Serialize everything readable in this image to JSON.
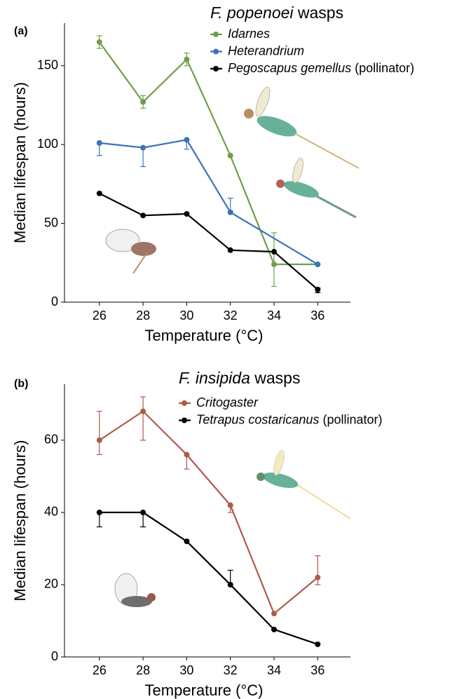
{
  "chart_data": [
    {
      "type": "line",
      "panel_label": "(a)",
      "legend_title": {
        "species": "F. popenoei",
        "rest": "wasps"
      },
      "x_label": "Temperature (°C)",
      "y_label": "Median lifespan (hours)",
      "x": [
        26,
        28,
        30,
        32,
        34,
        36
      ],
      "xlim": [
        24.4,
        37.5
      ],
      "xticks": [
        26,
        28,
        30,
        32,
        34,
        36
      ],
      "ylim": [
        0,
        177
      ],
      "yticks": [
        0,
        50,
        100,
        150
      ],
      "series": [
        {
          "name": "Idarnes",
          "color": "#6f9e4c",
          "values": [
            165,
            127,
            154,
            93,
            24,
            24
          ],
          "error_low": [
            4,
            4,
            4,
            0,
            14,
            0
          ],
          "error_high": [
            4,
            4,
            4,
            0,
            20,
            0
          ]
        },
        {
          "name": "Heterandrium",
          "color": "#3b73b9",
          "x": [
            26,
            28,
            30,
            32,
            36
          ],
          "values": [
            101,
            98,
            103,
            57,
            24
          ],
          "error_low": [
            8,
            12,
            6,
            0,
            0
          ],
          "error_high": [
            0,
            0,
            0,
            9,
            0
          ]
        },
        {
          "name": "Pegoscapus gemellus",
          "name_suffix": "(pollinator)",
          "color": "#000000",
          "values": [
            69,
            55,
            56,
            33,
            32,
            8
          ],
          "error_low": [
            0,
            0,
            0,
            0,
            0,
            2
          ],
          "error_high": [
            0,
            0,
            0,
            0,
            0,
            1
          ]
        }
      ]
    },
    {
      "type": "line",
      "panel_label": "(b)",
      "legend_title": {
        "species": "F. insipida",
        "rest": "wasps"
      },
      "x_label": "Temperature (°C)",
      "y_label": "Median lifespan (hours)",
      "x": [
        26,
        28,
        30,
        32,
        34,
        36
      ],
      "xlim": [
        24.4,
        37.5
      ],
      "xticks": [
        26,
        28,
        30,
        32,
        34,
        36
      ],
      "ylim": [
        0,
        75.5
      ],
      "yticks": [
        0,
        20,
        40,
        60
      ],
      "series": [
        {
          "name": "Critogaster",
          "color": "#b05a4a",
          "values": [
            60,
            68,
            56,
            42,
            12,
            22
          ],
          "error_low": [
            4,
            8,
            4,
            2,
            0,
            2
          ],
          "error_high": [
            8,
            4,
            0,
            0,
            0,
            6
          ]
        },
        {
          "name": "Tetrapus costaricanus",
          "name_suffix": "(pollinator)",
          "color": "#000000",
          "values": [
            40,
            40,
            32,
            20,
            7.6,
            3.5
          ],
          "error_low": [
            4,
            4,
            0,
            0,
            0,
            0
          ],
          "error_high": [
            0,
            0,
            0,
            4,
            0,
            0
          ]
        }
      ]
    }
  ]
}
